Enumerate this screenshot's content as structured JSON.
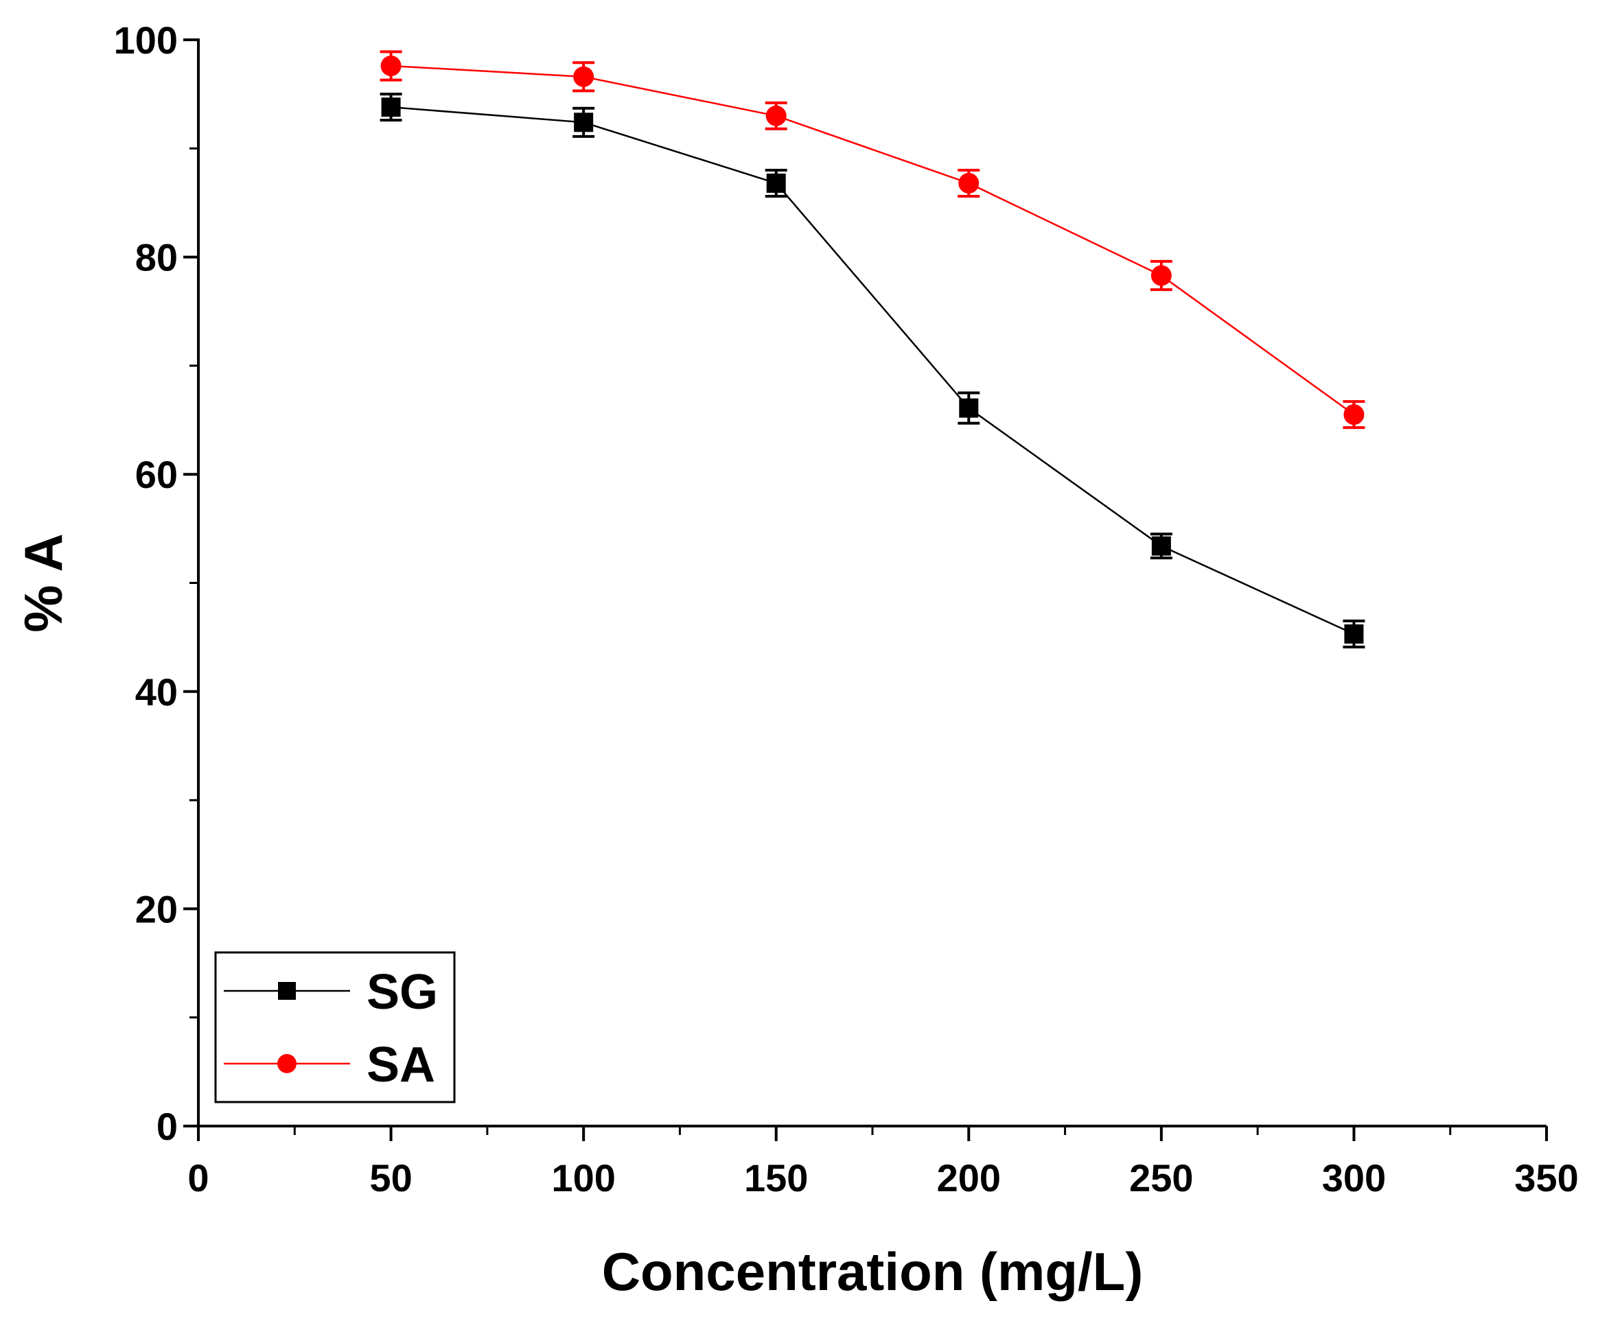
{
  "chart_data": {
    "type": "line",
    "xlabel": "Concentration (mg/L)",
    "ylabel": "% A",
    "xlim": [
      0,
      350
    ],
    "ylim": [
      0,
      100
    ],
    "x_major_ticks": [
      0,
      50,
      100,
      150,
      200,
      250,
      300,
      350
    ],
    "x_tick_labels": [
      "0",
      "50",
      "100",
      "150",
      "200",
      "250",
      "300",
      "350"
    ],
    "y_major_ticks": [
      0,
      20,
      40,
      60,
      80,
      100
    ],
    "y_tick_labels": [
      "0",
      "20",
      "40",
      "60",
      "80",
      "100"
    ],
    "grid": false,
    "legend_position": "bottom-left",
    "x": [
      50,
      100,
      150,
      200,
      250,
      300
    ],
    "series": [
      {
        "name": "SG",
        "color": "#000000",
        "marker": "square",
        "values": [
          93.8,
          92.4,
          86.8,
          66.1,
          53.4,
          45.3
        ],
        "error": [
          1.2,
          1.3,
          1.2,
          1.4,
          1.1,
          1.2
        ]
      },
      {
        "name": "SA",
        "color": "#ff0000",
        "marker": "circle",
        "values": [
          97.6,
          96.6,
          93.0,
          86.8,
          78.3,
          65.5
        ],
        "error": [
          1.3,
          1.3,
          1.2,
          1.2,
          1.3,
          1.2
        ]
      }
    ]
  }
}
